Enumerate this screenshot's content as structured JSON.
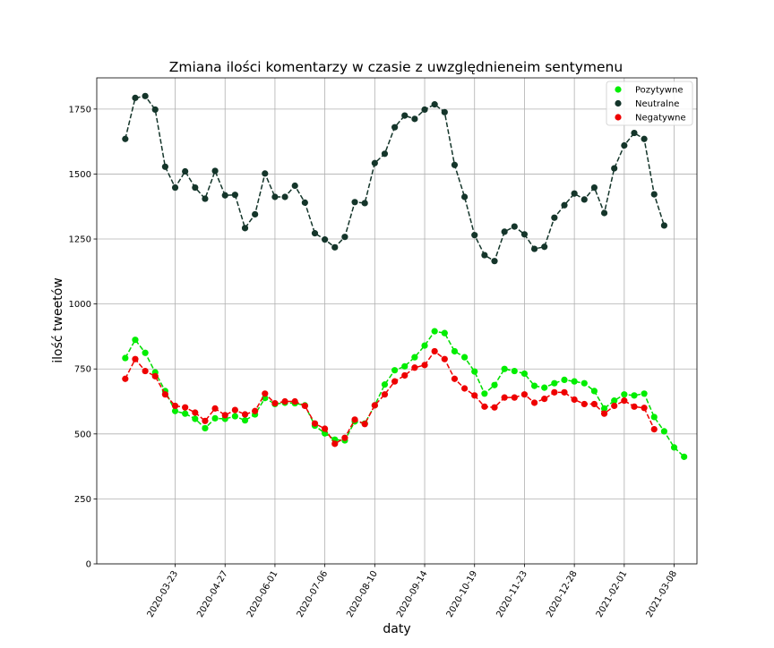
{
  "chart_data": {
    "type": "line",
    "title": "Zmiana ilości komentarzy w czasie z uwzględnieneim sentymenu",
    "xlabel": "daty",
    "ylabel": "ilość tweetów",
    "x_start_date": "2020-02-17",
    "x_step_days": 7,
    "xlim": [
      "2020-01-28",
      "2021-03-24"
    ],
    "ylim": [
      0,
      1870
    ],
    "xticks": [
      "2020-03-23",
      "2020-04-27",
      "2020-06-01",
      "2020-07-06",
      "2020-08-10",
      "2020-09-14",
      "2020-10-19",
      "2020-11-23",
      "2020-12-28",
      "2021-02-01",
      "2021-03-08"
    ],
    "yticks": [
      0,
      250,
      500,
      750,
      1000,
      1250,
      1500,
      1750
    ],
    "grid": true,
    "legend_position": "top-right",
    "line_style": "dashed",
    "series": [
      {
        "name": "Pozytywne",
        "color": "#00ee00",
        "line_color": "#00dd00",
        "values": [
          792,
          862,
          812,
          737,
          665,
          588,
          578,
          558,
          522,
          560,
          558,
          568,
          552,
          575,
          638,
          615,
          620,
          618,
          610,
          532,
          502,
          478,
          475,
          548,
          540,
          610,
          690,
          745,
          760,
          795,
          840,
          895,
          888,
          818,
          795,
          740,
          655,
          688,
          750,
          742,
          732,
          685,
          678,
          695,
          708,
          702,
          695,
          665,
          598,
          628,
          652,
          648,
          655,
          565,
          510,
          448,
          412
        ]
      },
      {
        "name": "Neutralne",
        "color": "#14352a",
        "line_color": "#14352a",
        "values": [
          1635,
          1793,
          1800,
          1748,
          1528,
          1448,
          1510,
          1448,
          1405,
          1512,
          1418,
          1420,
          1292,
          1345,
          1502,
          1412,
          1412,
          1455,
          1390,
          1272,
          1248,
          1218,
          1258,
          1392,
          1388,
          1542,
          1578,
          1680,
          1725,
          1712,
          1748,
          1768,
          1738,
          1535,
          1412,
          1265,
          1188,
          1165,
          1278,
          1298,
          1268,
          1212,
          1220,
          1332,
          1380,
          1425,
          1402,
          1448,
          1350,
          1522,
          1610,
          1658,
          1635,
          1422,
          1302
        ]
      },
      {
        "name": "Negatywne",
        "color": "#ee0000",
        "line_color": "#ee0000",
        "values": [
          712,
          788,
          742,
          722,
          652,
          608,
          602,
          582,
          550,
          598,
          572,
          592,
          575,
          588,
          655,
          618,
          625,
          625,
          608,
          540,
          520,
          462,
          485,
          555,
          538,
          610,
          652,
          702,
          725,
          755,
          765,
          818,
          788,
          712,
          675,
          648,
          605,
          602,
          640,
          640,
          652,
          620,
          635,
          660,
          660,
          632,
          615,
          615,
          578,
          608,
          628,
          605,
          600,
          518
        ]
      }
    ]
  }
}
